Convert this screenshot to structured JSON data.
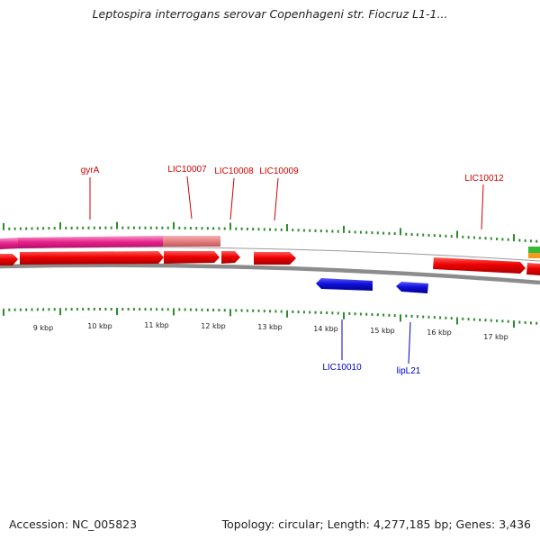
{
  "title": "Leptospira interrogans serovar Copenhageni str. Fiocruz L1-1...",
  "footer": {
    "accession": "Accession: NC_005823",
    "summary": "Topology: circular; Length: 4,277,185 bp; Genes: 3,436"
  },
  "colors": {
    "forward_gene": "#ee0000",
    "reverse_gene": "#1111dd",
    "highlight_gene": "#e8208a",
    "pseudo_gene": "#e58080",
    "backbone": "#8c8c8c",
    "tick": "#2e8b2e",
    "label_forward": "#cc0000",
    "label_reverse": "#0000bb"
  },
  "scale_labels": [
    "9 kbp",
    "10 kbp",
    "11 kbp",
    "12 kbp",
    "13 kbp",
    "14 kbp",
    "15 kbp",
    "16 kbp",
    "17 kbp"
  ],
  "gene_labels": {
    "forward": [
      "gyrA",
      "LIC10007",
      "LIC10008",
      "LIC10009",
      "LIC10012"
    ],
    "reverse": [
      "LIC10010",
      "lipL21"
    ]
  }
}
